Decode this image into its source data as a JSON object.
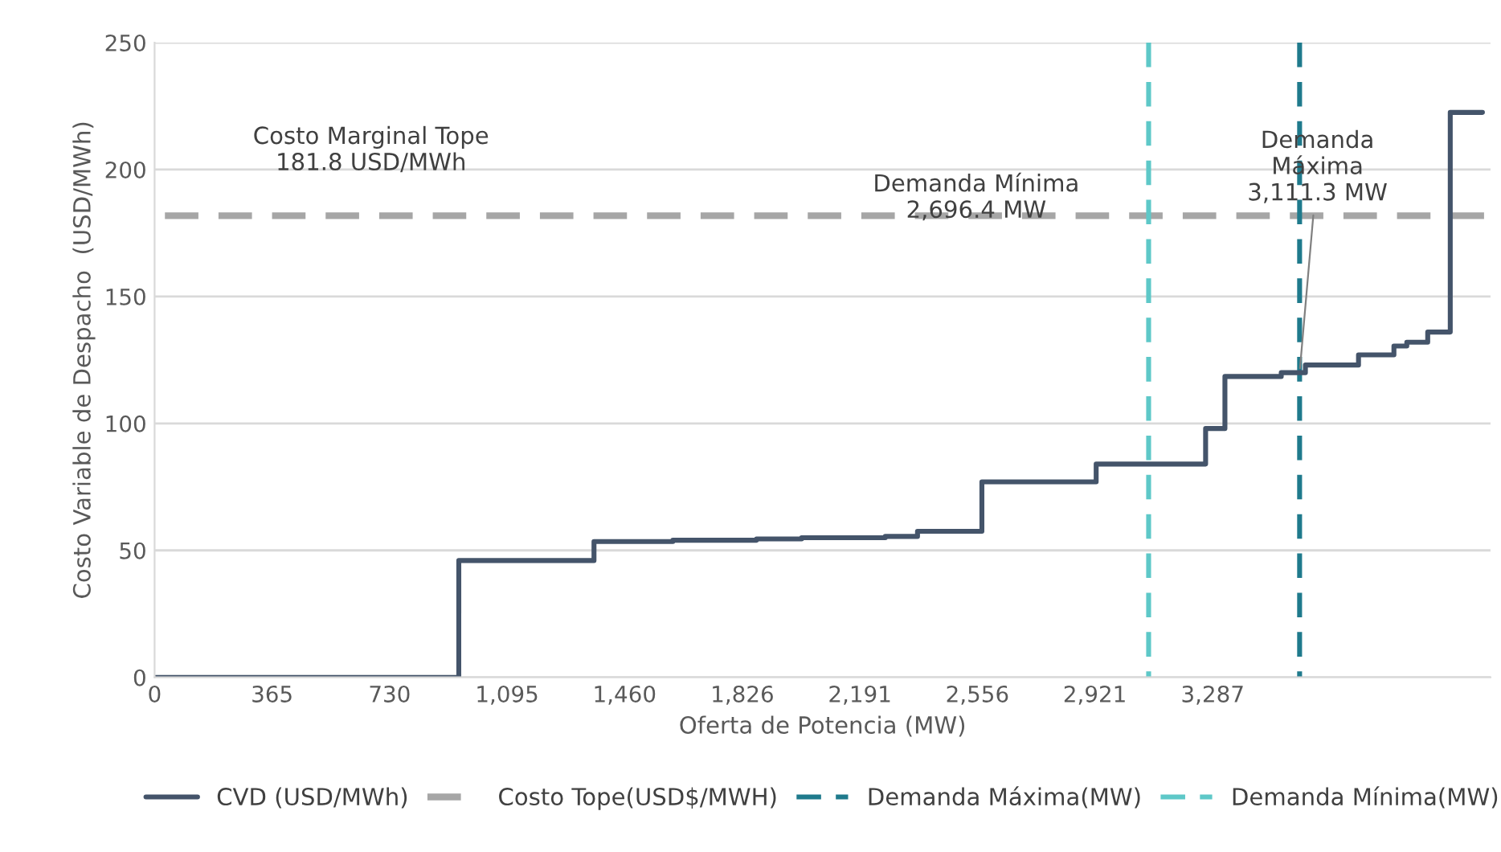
{
  "chart_data": {
    "type": "step",
    "xlabel": "Oferta de Potencia (MW)",
    "ylabel": "Costo Variable de Despacho  (USD/MWh)",
    "xlim": [
      0,
      4150
    ],
    "ylim": [
      0,
      250
    ],
    "xticks": [
      0,
      365,
      730,
      {
        "value": 1095,
        "label": "1,095"
      },
      {
        "value": 1460,
        "label": "1,460"
      },
      {
        "value": 1826,
        "label": "1,826"
      },
      {
        "value": 2191,
        "label": "2,191"
      },
      {
        "value": 2556,
        "label": "2,556"
      },
      {
        "value": 2921,
        "label": "2,921"
      },
      {
        "value": 3287,
        "label": "3,287"
      }
    ],
    "yticks": [
      0,
      50,
      100,
      150,
      200,
      250
    ],
    "grid": "y",
    "legend": "bottom",
    "series": [
      {
        "name": "CVD (USD/MWh)",
        "color": "#44546a",
        "line_style": "solid",
        "x": [
          0,
          945,
          1365,
          1610,
          1870,
          2010,
          2270,
          2370,
          2570,
          2925,
          3265,
          3325,
          3500,
          3575,
          3740,
          3850,
          3890,
          3955,
          4025,
          4125
        ],
        "values": [
          0,
          46,
          53.5,
          54,
          54.5,
          55,
          55.5,
          57.5,
          77,
          84,
          98,
          118.5,
          120,
          123,
          127,
          130.5,
          132,
          136,
          222.5,
          222.5
        ]
      },
      {
        "name": "Costo Tope(USD$/MWH)",
        "type": "line",
        "color": "#a6a6a6",
        "line_style": "dashed",
        "x": [
          0,
          4130
        ],
        "values": [
          181.8,
          181.8
        ]
      },
      {
        "name": "Demanda Máxima(MW)",
        "type": "line",
        "color": "#1f7a8c",
        "line_style": "dashed",
        "x": [
          3557,
          3557
        ],
        "values": [
          0,
          250
        ]
      },
      {
        "name": "Demanda Mínima(MW)",
        "type": "line",
        "color": "#5ec8c8",
        "line_style": "dashed",
        "x": [
          3088,
          3088
        ],
        "values": [
          0,
          250
        ]
      }
    ],
    "annotations": [
      "Costo Marginal Tope\n181.8 USD/MWh",
      "Demanda Mínima\n2,696.4 MW",
      {
        "text": "Demanda\nMáxima\n3,111.3 MW",
        "x": 3557,
        "y": 120
      }
    ]
  }
}
